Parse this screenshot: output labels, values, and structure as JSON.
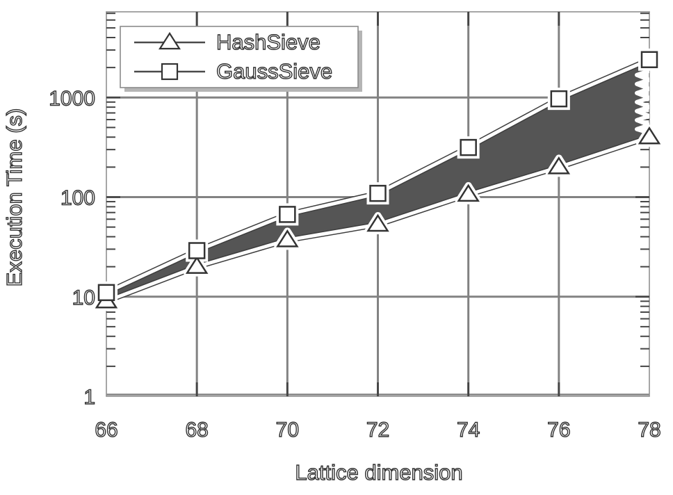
{
  "chart_data": {
    "type": "line",
    "title": "",
    "xlabel": "Lattice dimension",
    "ylabel": "Execution Time (s)",
    "yscale": "log",
    "xlim": [
      66,
      78
    ],
    "ylim": [
      1,
      7250
    ],
    "x": [
      66,
      68,
      70,
      72,
      74,
      76,
      78
    ],
    "series": [
      {
        "name": "HashSieve",
        "marker": "triangle",
        "values": [
          9,
          20,
          37,
          53,
          106,
          200,
          400
        ]
      },
      {
        "name": "GaussSieve",
        "marker": "square",
        "values": [
          11,
          29,
          67,
          109,
          315,
          970,
          2400
        ]
      }
    ],
    "band_fill_between_series": true,
    "x_ticks": [
      66,
      68,
      70,
      72,
      74,
      76,
      78
    ],
    "y_ticks": [
      1,
      10,
      100,
      1000
    ],
    "grid": true,
    "legend_position": "top-left",
    "colors": {
      "band_fill": "#555555",
      "gridline": "#828282",
      "axis_border": "#909090",
      "tick": "#444444",
      "line_casing": "#3d3d3d",
      "line_core": "#ffffff",
      "marker_fill": "#ffffff",
      "marker_stroke": "#333333",
      "legend_shadow": "#b5b5b5",
      "text_fill": "#ffffff",
      "text_outline": "#2f2f2f"
    }
  }
}
